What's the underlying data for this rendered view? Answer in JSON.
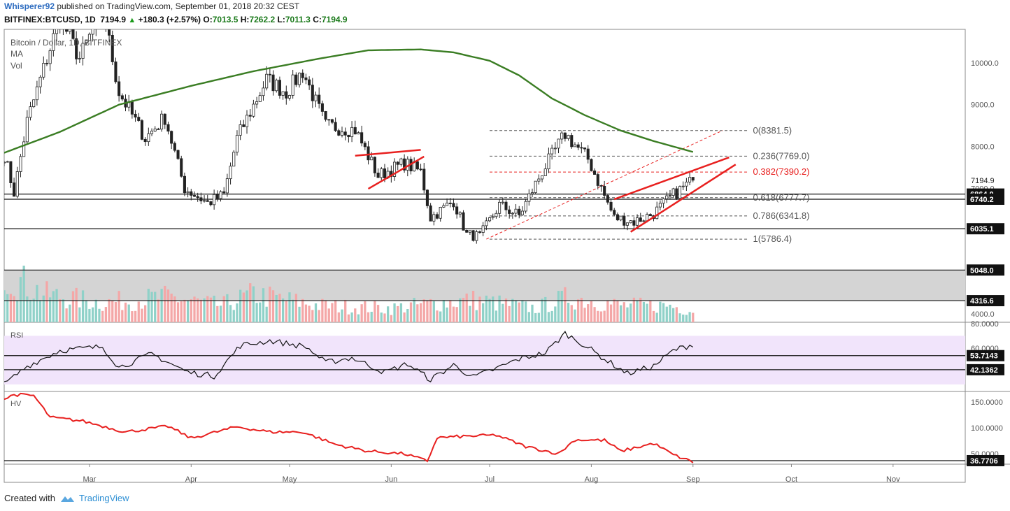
{
  "header": {
    "author": "Whisperer92",
    "published_text": "published on TradingView.com, September 01, 2018 20:32 CEST",
    "symbol": "BITFINEX:BTCUSD, 1D",
    "last": "7194.9",
    "change": "+180.3 (+2.57%)",
    "o_label": "O:",
    "o_value": "7013.5",
    "h_label": "H:",
    "h_value": "7262.2",
    "l_label": "L:",
    "l_value": "7011.3",
    "c_label": "C:",
    "c_value": "7194.9"
  },
  "legend": {
    "title": "Bitcoin / Dollar, 1D, BITFINEX",
    "ma": "MA",
    "vol": "Vol",
    "rsi": "RSI",
    "hv": "HV"
  },
  "footer": {
    "created_with": "Created with",
    "brand": "TradingView"
  },
  "colors": {
    "up": "#ffffff",
    "down": "#222222",
    "ma": "#3a7d23",
    "red": "#e8201f",
    "vol_up": "#8fd1c8",
    "vol_down": "#f4a7a7",
    "rsi_band": "#f1e4fb",
    "zone": "#d4d4d4"
  },
  "chart_data": [
    {
      "type": "candlestick",
      "title": "Bitcoin / Dollar, 1D, BITFINEX",
      "x_range": [
        "2018-02-03",
        "2018-11-23"
      ],
      "month_labels": [
        "Mar",
        "Apr",
        "May",
        "Jun",
        "Jul",
        "Aug",
        "Sep",
        "Oct",
        "Nov"
      ],
      "ylim": [
        3800,
        10800
      ],
      "y_ticks": [
        4000,
        5000,
        6000,
        7000,
        8000,
        9000,
        10000
      ],
      "y_tick_labels": [
        "4000.0",
        "5000.0",
        "6000.0",
        "7000.0",
        "8000.0",
        "9000.0",
        "10000.0"
      ],
      "last_price": 7194.9,
      "last_price_label": "7194.9",
      "close_anchors": [
        [
          "2018-02-03",
          7800
        ],
        [
          "2018-02-06",
          6900
        ],
        [
          "2018-02-10",
          8600
        ],
        [
          "2018-02-20",
          11100
        ],
        [
          "2018-02-26",
          10100
        ],
        [
          "2018-03-05",
          11300
        ],
        [
          "2018-03-10",
          9300
        ],
        [
          "2018-03-18",
          8200
        ],
        [
          "2018-03-24",
          8700
        ],
        [
          "2018-03-30",
          7000
        ],
        [
          "2018-04-06",
          6650
        ],
        [
          "2018-04-11",
          6850
        ],
        [
          "2018-04-15",
          8200
        ],
        [
          "2018-04-24",
          9600
        ],
        [
          "2018-04-30",
          9300
        ],
        [
          "2018-05-05",
          9800
        ],
        [
          "2018-05-12",
          8500
        ],
        [
          "2018-05-21",
          8400
        ],
        [
          "2018-05-28",
          7300
        ],
        [
          "2018-06-05",
          7600
        ],
        [
          "2018-06-10",
          7400
        ],
        [
          "2018-06-13",
          6300
        ],
        [
          "2018-06-20",
          6700
        ],
        [
          "2018-06-24",
          5900
        ],
        [
          "2018-06-28",
          5850
        ],
        [
          "2018-07-04",
          6600
        ],
        [
          "2018-07-10",
          6350
        ],
        [
          "2018-07-17",
          7400
        ],
        [
          "2018-07-24",
          8300
        ],
        [
          "2018-07-31",
          7700
        ],
        [
          "2018-08-08",
          6300
        ],
        [
          "2018-08-14",
          6200
        ],
        [
          "2018-08-20",
          6400
        ],
        [
          "2018-08-26",
          6850
        ],
        [
          "2018-09-01",
          7195
        ]
      ],
      "price_lines": [
        {
          "value": 6864.0,
          "label": "6864.0"
        },
        {
          "value": 6740.2,
          "label": "6740.2"
        },
        {
          "value": 6035.1,
          "label": "6035.1"
        },
        {
          "value": 5048.0,
          "label": "5048.0"
        },
        {
          "value": 4316.6,
          "label": "4316.6"
        }
      ],
      "fibonacci": [
        {
          "ratio": "0",
          "value": 8381.5,
          "label": "0(8381.5)"
        },
        {
          "ratio": "0.236",
          "value": 7769.0,
          "label": "0.236(7769.0)"
        },
        {
          "ratio": "0.382",
          "value": 7390.2,
          "label": "0.382(7390.2)",
          "highlight": true
        },
        {
          "ratio": "0.618",
          "value": 6777.7,
          "label": "0.618(6777.7)"
        },
        {
          "ratio": "0.786",
          "value": 6341.8,
          "label": "0.786(6341.8)"
        },
        {
          "ratio": "1",
          "value": 5786.4,
          "label": "1(5786.4)"
        }
      ],
      "fib_range": [
        "2018-07-01",
        "2018-09-18"
      ],
      "fib_trend": {
        "from": [
          "2018-06-30",
          5786.4
        ],
        "to": [
          "2018-09-10",
          8381.5
        ]
      },
      "support_zone": [
        4316.6,
        5048.0
      ],
      "ma_anchors": [
        [
          "2018-02-03",
          7850
        ],
        [
          "2018-02-20",
          8350
        ],
        [
          "2018-03-10",
          9000
        ],
        [
          "2018-04-01",
          9450
        ],
        [
          "2018-04-20",
          9800
        ],
        [
          "2018-05-10",
          10100
        ],
        [
          "2018-05-25",
          10300
        ],
        [
          "2018-06-10",
          10320
        ],
        [
          "2018-06-20",
          10250
        ],
        [
          "2018-07-01",
          10050
        ],
        [
          "2018-07-10",
          9700
        ],
        [
          "2018-07-20",
          9150
        ],
        [
          "2018-07-30",
          8750
        ],
        [
          "2018-08-10",
          8380
        ],
        [
          "2018-08-20",
          8130
        ],
        [
          "2018-09-01",
          7870
        ]
      ],
      "trendlines": [
        {
          "from": [
            "2018-05-21",
            7780
          ],
          "to": [
            "2018-06-10",
            7920
          ]
        },
        {
          "from": [
            "2018-05-25",
            6990
          ],
          "to": [
            "2018-06-11",
            7760
          ]
        },
        {
          "from": [
            "2018-08-08",
            6740
          ],
          "to": [
            "2018-09-12",
            7740
          ]
        },
        {
          "from": [
            "2018-08-13",
            5960
          ],
          "to": [
            "2018-09-14",
            7570
          ]
        }
      ]
    },
    {
      "type": "line",
      "title": "RSI",
      "ylim": [
        30,
        80
      ],
      "y_ticks": [
        60,
        80
      ],
      "y_tick_labels": [
        "60.0000",
        "80.0000"
      ],
      "band": [
        30,
        70
      ],
      "levels": [
        {
          "value": 53.7143,
          "label": "53.7143"
        },
        {
          "value": 42.1362,
          "label": "42.1362"
        }
      ],
      "anchors": [
        [
          "2018-02-03",
          30
        ],
        [
          "2018-02-10",
          45
        ],
        [
          "2018-02-20",
          58
        ],
        [
          "2018-03-05",
          61
        ],
        [
          "2018-03-10",
          44
        ],
        [
          "2018-03-20",
          55
        ],
        [
          "2018-03-31",
          40
        ],
        [
          "2018-04-08",
          37
        ],
        [
          "2018-04-16",
          62
        ],
        [
          "2018-04-25",
          66
        ],
        [
          "2018-05-06",
          61
        ],
        [
          "2018-05-12",
          48
        ],
        [
          "2018-05-20",
          52
        ],
        [
          "2018-05-30",
          40
        ],
        [
          "2018-06-06",
          47
        ],
        [
          "2018-06-13",
          34
        ],
        [
          "2018-06-20",
          46
        ],
        [
          "2018-06-26",
          36
        ],
        [
          "2018-07-02",
          42
        ],
        [
          "2018-07-10",
          51
        ],
        [
          "2018-07-18",
          56
        ],
        [
          "2018-07-24",
          72
        ],
        [
          "2018-07-29",
          64
        ],
        [
          "2018-08-05",
          51
        ],
        [
          "2018-08-12",
          39
        ],
        [
          "2018-08-20",
          45
        ],
        [
          "2018-08-26",
          58
        ],
        [
          "2018-09-01",
          63
        ]
      ]
    },
    {
      "type": "line",
      "title": "HV",
      "ylim": [
        30,
        170
      ],
      "y_ticks": [
        50,
        100,
        150
      ],
      "y_tick_labels": [
        "50.0000",
        "100.0000",
        "150.0000"
      ],
      "levels": [
        {
          "value": 36.7706,
          "label": "36.7706"
        }
      ],
      "anchors": [
        [
          "2018-02-03",
          155
        ],
        [
          "2018-02-06",
          164
        ],
        [
          "2018-02-12",
          162
        ],
        [
          "2018-02-17",
          120
        ],
        [
          "2018-02-27",
          113
        ],
        [
          "2018-03-12",
          92
        ],
        [
          "2018-03-25",
          103
        ],
        [
          "2018-04-01",
          80
        ],
        [
          "2018-04-15",
          102
        ],
        [
          "2018-04-25",
          92
        ],
        [
          "2018-05-05",
          92
        ],
        [
          "2018-05-15",
          68
        ],
        [
          "2018-05-25",
          55
        ],
        [
          "2018-06-05",
          50
        ],
        [
          "2018-06-12",
          36
        ],
        [
          "2018-06-15",
          81
        ],
        [
          "2018-06-25",
          84
        ],
        [
          "2018-07-03",
          86
        ],
        [
          "2018-07-12",
          64
        ],
        [
          "2018-07-22",
          50
        ],
        [
          "2018-07-27",
          77
        ],
        [
          "2018-08-05",
          76
        ],
        [
          "2018-08-10",
          55
        ],
        [
          "2018-08-20",
          70
        ],
        [
          "2018-08-26",
          48
        ],
        [
          "2018-09-01",
          34
        ]
      ]
    },
    {
      "type": "bar",
      "title": "Vol",
      "anchors": [
        [
          "2018-02-03",
          0.9
        ],
        [
          "2018-02-15",
          0.5
        ],
        [
          "2018-03-05",
          0.35
        ],
        [
          "2018-03-25",
          0.45
        ],
        [
          "2018-04-10",
          0.3
        ],
        [
          "2018-04-20",
          0.5
        ],
        [
          "2018-05-10",
          0.3
        ],
        [
          "2018-06-01",
          0.25
        ],
        [
          "2018-06-15",
          0.35
        ],
        [
          "2018-06-26",
          0.4
        ],
        [
          "2018-07-15",
          0.25
        ],
        [
          "2018-07-25",
          0.45
        ],
        [
          "2018-08-10",
          0.3
        ],
        [
          "2018-08-25",
          0.3
        ],
        [
          "2018-09-01",
          0.2
        ]
      ]
    }
  ]
}
